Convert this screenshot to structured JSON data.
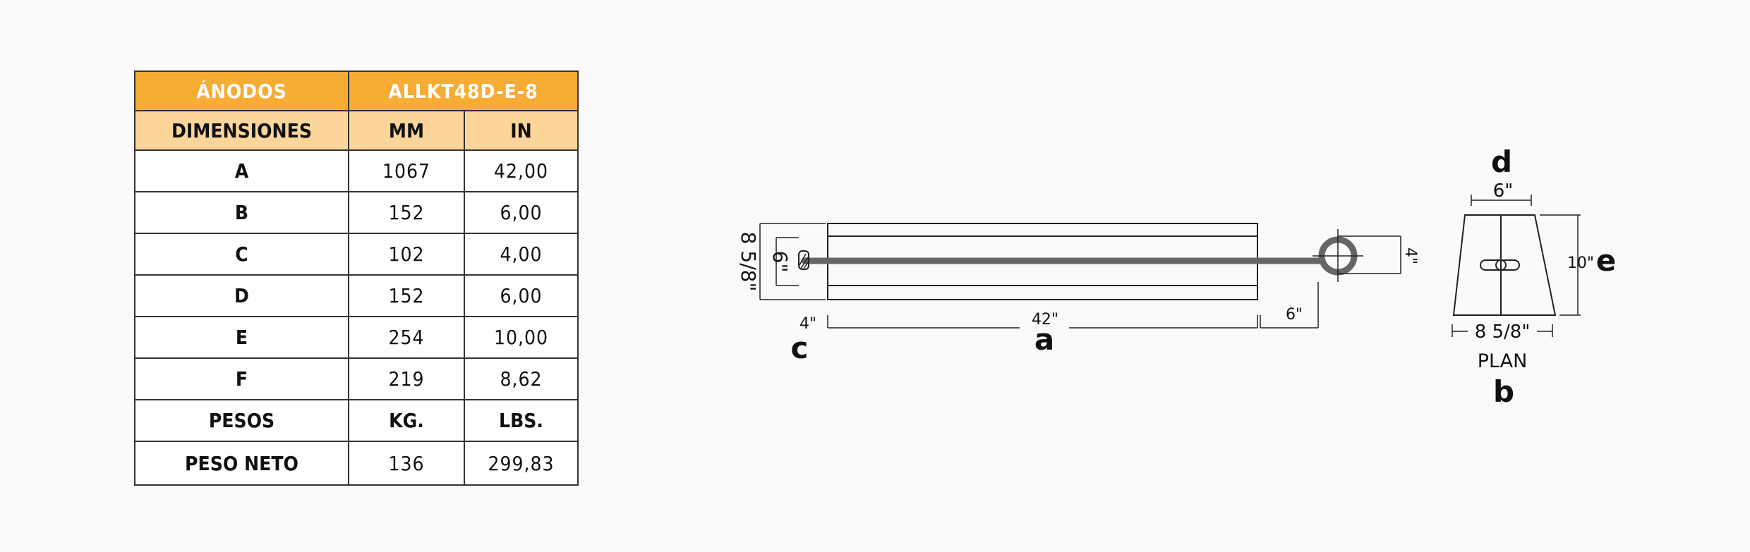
{
  "table": {
    "title_left": "ÁNODOS",
    "title_right": "ALLKT48D-E-8",
    "head": {
      "dim": "DIMENSIONES",
      "mm": "MM",
      "in": "IN"
    },
    "rows": [
      {
        "label": "A",
        "mm": "1067",
        "in": "42,00"
      },
      {
        "label": "B",
        "mm": "152",
        "in": "6,00"
      },
      {
        "label": "C",
        "mm": "102",
        "in": "4,00"
      },
      {
        "label": "D",
        "mm": "152",
        "in": "6,00"
      },
      {
        "label": "E",
        "mm": "254",
        "in": "10,00"
      },
      {
        "label": "F",
        "mm": "219",
        "in": "8,62"
      }
    ],
    "weights_head": {
      "label": "PESOS",
      "kg": "KG.",
      "lbs": "LBS."
    },
    "net_weight": {
      "label": "PESO NETO",
      "kg": "136",
      "lbs": "299,83"
    }
  },
  "side_view": {
    "height_total": "8 5/8\"",
    "height_inner": "6\"",
    "eye_height": "4\"",
    "left_offset": "4\"",
    "length": "42\"",
    "right_offset": "6\"",
    "letter_c": "c",
    "letter_a": "a"
  },
  "plan_view": {
    "letter_d": "d",
    "top_width": "6\"",
    "height": "10\"",
    "letter_e": "e",
    "bottom_width": "8 5/8\"",
    "caption": "PLAN",
    "letter_b": "b"
  },
  "colors": {
    "header_orange": "#f7ac34",
    "subheader_peach": "#fcd59a",
    "strap_gray": "#666666"
  }
}
